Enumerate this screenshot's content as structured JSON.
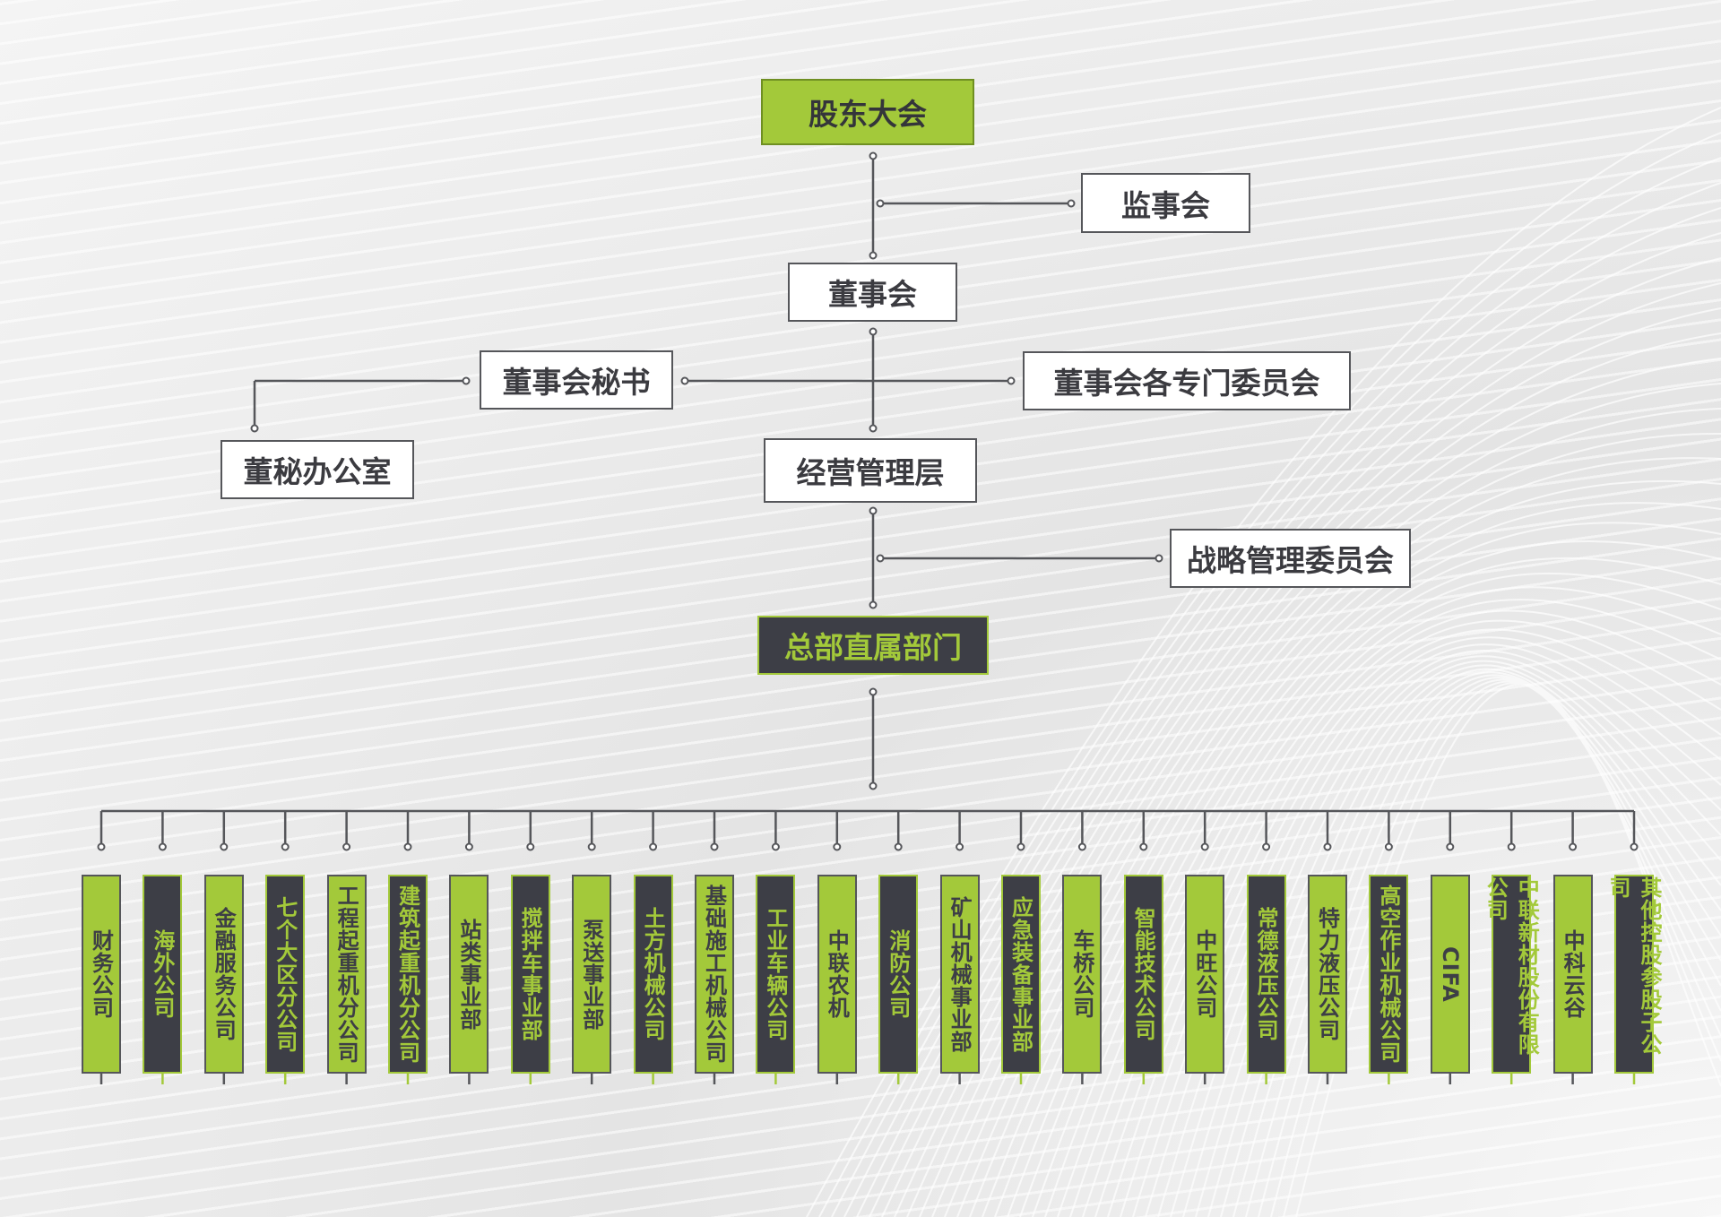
{
  "nodes": {
    "shareholders": "股东大会",
    "supervisory_board": "监事会",
    "board": "董事会",
    "board_secretary": "董事会秘书",
    "board_committees": "董事会各专门委员会",
    "secretary_office": "董秘办公室",
    "management": "经营管理层",
    "strategy_committee": "战略管理委员会",
    "hq_departments": "总部直属部门"
  },
  "colors": {
    "green": "#a3c93a",
    "dark": "#3d3e46",
    "line": "#55565a"
  },
  "subsidiaries": [
    "财务公司",
    "海外公司",
    "金融服务公司",
    "七个大区分公司",
    "工程起重机分公司",
    "建筑起重机分公司",
    "站类事业部",
    "搅拌车事业部",
    "泵送事业部",
    "土方机械公司",
    "基础施工机械公司",
    "工业车辆公司",
    "中联农机",
    "消防公司",
    "矿山机械事业部",
    "应急装备事业部",
    "车桥公司",
    "智能技术公司",
    "中旺公司",
    "常德液压公司",
    "特力液压公司",
    "高空作业机械公司",
    "CIFA",
    "中联新材股份有限公司",
    "中科云谷",
    "其他控股参股子公司"
  ]
}
